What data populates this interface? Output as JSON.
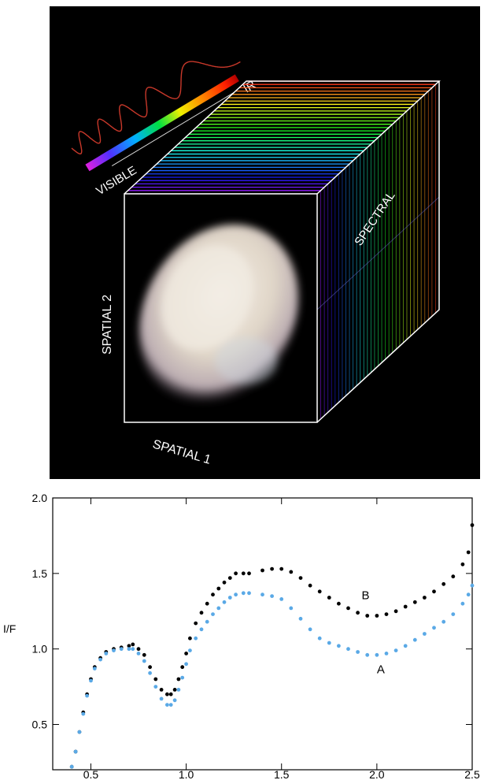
{
  "cube_diagram": {
    "labels": {
      "visible": "VISIBLE",
      "ir": "IR",
      "spatial_1": "SPATIAL 1",
      "spatial_2": "SPATIAL 2",
      "spectral": "SPECTRAL"
    },
    "colors": {
      "background": "#000000",
      "cube_edge": "#ffffff",
      "wave": "#d03a2a",
      "asteroid": "#e6dccf"
    }
  },
  "chart_data": {
    "type": "scatter",
    "title": "",
    "xlabel": "",
    "ylabel": "I/F",
    "xlim": [
      0.3,
      2.5
    ],
    "ylim": [
      0.2,
      2.0
    ],
    "x_ticks": [
      "0.5",
      "1.0",
      "1.5",
      "2.0",
      "2.5"
    ],
    "y_ticks": [
      "0.5",
      "1.0",
      "1.5",
      "2.0"
    ],
    "series": [
      {
        "name": "B",
        "color": "#000000",
        "points": [
          [
            0.4,
            0.22
          ],
          [
            0.42,
            0.32
          ],
          [
            0.44,
            0.45
          ],
          [
            0.46,
            0.58
          ],
          [
            0.48,
            0.7
          ],
          [
            0.5,
            0.8
          ],
          [
            0.52,
            0.88
          ],
          [
            0.55,
            0.94
          ],
          [
            0.58,
            0.98
          ],
          [
            0.62,
            1.0
          ],
          [
            0.66,
            1.01
          ],
          [
            0.7,
            1.02
          ],
          [
            0.72,
            1.03
          ],
          [
            0.75,
            1.0
          ],
          [
            0.78,
            0.96
          ],
          [
            0.81,
            0.88
          ],
          [
            0.84,
            0.8
          ],
          [
            0.87,
            0.73
          ],
          [
            0.9,
            0.7
          ],
          [
            0.92,
            0.7
          ],
          [
            0.94,
            0.73
          ],
          [
            0.96,
            0.8
          ],
          [
            0.98,
            0.88
          ],
          [
            1.0,
            0.97
          ],
          [
            1.02,
            1.07
          ],
          [
            1.05,
            1.17
          ],
          [
            1.08,
            1.24
          ],
          [
            1.11,
            1.3
          ],
          [
            1.14,
            1.36
          ],
          [
            1.17,
            1.4
          ],
          [
            1.2,
            1.44
          ],
          [
            1.23,
            1.47
          ],
          [
            1.26,
            1.5
          ],
          [
            1.3,
            1.5
          ],
          [
            1.33,
            1.5
          ],
          [
            1.4,
            1.52
          ],
          [
            1.45,
            1.53
          ],
          [
            1.5,
            1.53
          ],
          [
            1.55,
            1.51
          ],
          [
            1.6,
            1.47
          ],
          [
            1.65,
            1.42
          ],
          [
            1.7,
            1.38
          ],
          [
            1.75,
            1.34
          ],
          [
            1.8,
            1.3
          ],
          [
            1.85,
            1.27
          ],
          [
            1.9,
            1.24
          ],
          [
            1.95,
            1.22
          ],
          [
            2.0,
            1.22
          ],
          [
            2.05,
            1.23
          ],
          [
            2.1,
            1.25
          ],
          [
            2.15,
            1.28
          ],
          [
            2.2,
            1.31
          ],
          [
            2.25,
            1.34
          ],
          [
            2.3,
            1.38
          ],
          [
            2.35,
            1.43
          ],
          [
            2.4,
            1.48
          ],
          [
            2.45,
            1.56
          ],
          [
            2.48,
            1.64
          ],
          [
            2.5,
            1.82
          ]
        ]
      },
      {
        "name": "A",
        "color": "#5aa9e6",
        "points": [
          [
            0.4,
            0.22
          ],
          [
            0.42,
            0.32
          ],
          [
            0.44,
            0.45
          ],
          [
            0.46,
            0.57
          ],
          [
            0.48,
            0.69
          ],
          [
            0.5,
            0.79
          ],
          [
            0.52,
            0.87
          ],
          [
            0.55,
            0.93
          ],
          [
            0.58,
            0.97
          ],
          [
            0.62,
            0.99
          ],
          [
            0.66,
            1.0
          ],
          [
            0.7,
            1.0
          ],
          [
            0.72,
            1.0
          ],
          [
            0.75,
            0.97
          ],
          [
            0.78,
            0.92
          ],
          [
            0.81,
            0.84
          ],
          [
            0.84,
            0.75
          ],
          [
            0.87,
            0.67
          ],
          [
            0.9,
            0.63
          ],
          [
            0.92,
            0.63
          ],
          [
            0.94,
            0.66
          ],
          [
            0.96,
            0.73
          ],
          [
            0.98,
            0.81
          ],
          [
            1.0,
            0.9
          ],
          [
            1.02,
            0.99
          ],
          [
            1.05,
            1.07
          ],
          [
            1.08,
            1.13
          ],
          [
            1.11,
            1.18
          ],
          [
            1.14,
            1.23
          ],
          [
            1.17,
            1.27
          ],
          [
            1.2,
            1.31
          ],
          [
            1.23,
            1.34
          ],
          [
            1.26,
            1.36
          ],
          [
            1.3,
            1.37
          ],
          [
            1.33,
            1.37
          ],
          [
            1.4,
            1.36
          ],
          [
            1.45,
            1.35
          ],
          [
            1.5,
            1.33
          ],
          [
            1.55,
            1.27
          ],
          [
            1.6,
            1.2
          ],
          [
            1.65,
            1.13
          ],
          [
            1.7,
            1.07
          ],
          [
            1.75,
            1.04
          ],
          [
            1.8,
            1.02
          ],
          [
            1.85,
            1.0
          ],
          [
            1.9,
            0.98
          ],
          [
            1.95,
            0.96
          ],
          [
            2.0,
            0.96
          ],
          [
            2.05,
            0.97
          ],
          [
            2.1,
            0.99
          ],
          [
            2.15,
            1.02
          ],
          [
            2.2,
            1.06
          ],
          [
            2.25,
            1.1
          ],
          [
            2.3,
            1.14
          ],
          [
            2.35,
            1.18
          ],
          [
            2.4,
            1.23
          ],
          [
            2.45,
            1.3
          ],
          [
            2.48,
            1.36
          ],
          [
            2.5,
            1.42
          ]
        ]
      }
    ],
    "annotations": [
      {
        "text": "B",
        "x": 1.92,
        "y": 1.33
      },
      {
        "text": "A",
        "x": 2.0,
        "y": 0.84
      }
    ]
  }
}
